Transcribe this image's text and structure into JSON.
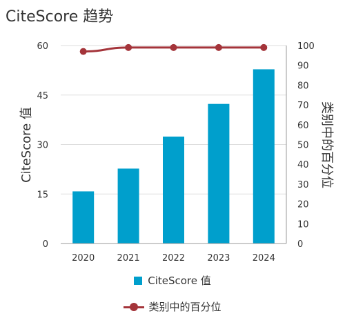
{
  "header": {
    "title": "CiteScore 趋势"
  },
  "colors": {
    "bar": "#009fcc",
    "line": "#a4343a",
    "grid": "#dddddd",
    "axis": "#999999"
  },
  "chart_data": {
    "type": "bar+line",
    "categories": [
      "2020",
      "2021",
      "2022",
      "2023",
      "2024"
    ],
    "series": [
      {
        "name": "CiteScore 值",
        "type": "bar",
        "axis": "left",
        "values": [
          15.8,
          22.7,
          32.4,
          42.3,
          52.8
        ]
      },
      {
        "name": "类别中的百分位",
        "type": "line",
        "axis": "right",
        "values": [
          97,
          99,
          99,
          99,
          99
        ]
      }
    ],
    "ylabel": "CiteScore 值",
    "y2label": "类别中的百分位",
    "ylim": [
      0,
      60
    ],
    "yticks": [
      0,
      15,
      30,
      45,
      60
    ],
    "y2lim": [
      0,
      100
    ],
    "y2ticks": [
      0,
      10,
      20,
      30,
      40,
      50,
      60,
      70,
      80,
      90,
      100
    ],
    "grid": true,
    "legend_position": "bottom"
  }
}
